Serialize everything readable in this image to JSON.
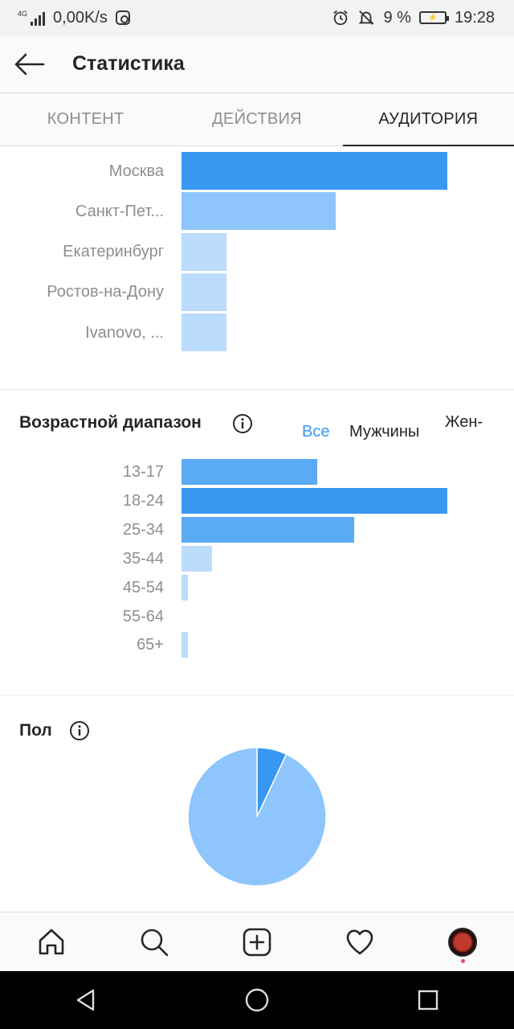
{
  "status_bar": {
    "network": "4G",
    "speed": "0,00K/s",
    "battery_percent": "9 %",
    "time": "19:28",
    "icons": [
      "signal-icon",
      "instagram-icon",
      "alarm-icon",
      "notifications-off-icon",
      "battery-icon"
    ]
  },
  "header": {
    "title": "Статистика",
    "back_icon": "arrow-left-icon"
  },
  "tabs": [
    {
      "label": "КОНТЕНТ",
      "active": false
    },
    {
      "label": "ДЕЙСТВИЯ",
      "active": false
    },
    {
      "label": "АУДИТОРИЯ",
      "active": true
    }
  ],
  "cities": {
    "chart_data": {
      "type": "bar",
      "orientation": "horizontal",
      "categories": [
        "Москва",
        "Санкт-Пет...",
        "Екатеринбург",
        "Ростов-на-Дону",
        "Ivanovo, ..."
      ],
      "values": [
        100,
        58,
        17,
        17,
        17
      ],
      "colors": [
        "#3897f0",
        "#8ec5fc",
        "#bcdcfd",
        "#bcdcfd",
        "#bcdcfd"
      ]
    }
  },
  "age": {
    "title": "Возрастной диапазон",
    "filters": [
      {
        "label": "Все",
        "active": true
      },
      {
        "label": "Мужчины",
        "active": false
      },
      {
        "label": "Жен-",
        "active": false
      }
    ],
    "chart_data": {
      "type": "bar",
      "orientation": "horizontal",
      "categories": [
        "13-17",
        "18-24",
        "25-34",
        "35-44",
        "45-54",
        "55-64",
        "65+"
      ],
      "values": [
        51,
        100,
        65,
        11.5,
        2.4,
        0,
        2.4
      ],
      "colors": [
        "#5aaaf5",
        "#3897f0",
        "#5aaaf5",
        "#bcdcfd",
        "#bcdcfd",
        "#bcdcfd",
        "#bcdcfd"
      ]
    }
  },
  "gender": {
    "title": "Пол",
    "chart_data": {
      "type": "pie",
      "slices": [
        {
          "value": 7,
          "color": "#3897f0"
        },
        {
          "value": 93,
          "color": "#8ec5fc"
        }
      ]
    }
  },
  "bottom_nav": {
    "items": [
      "home-icon",
      "search-icon",
      "add-post-icon",
      "activity-heart-icon",
      "profile-avatar"
    ]
  },
  "system_nav": {
    "items": [
      "back-triangle-icon",
      "home-circle-icon",
      "recents-square-icon"
    ]
  }
}
